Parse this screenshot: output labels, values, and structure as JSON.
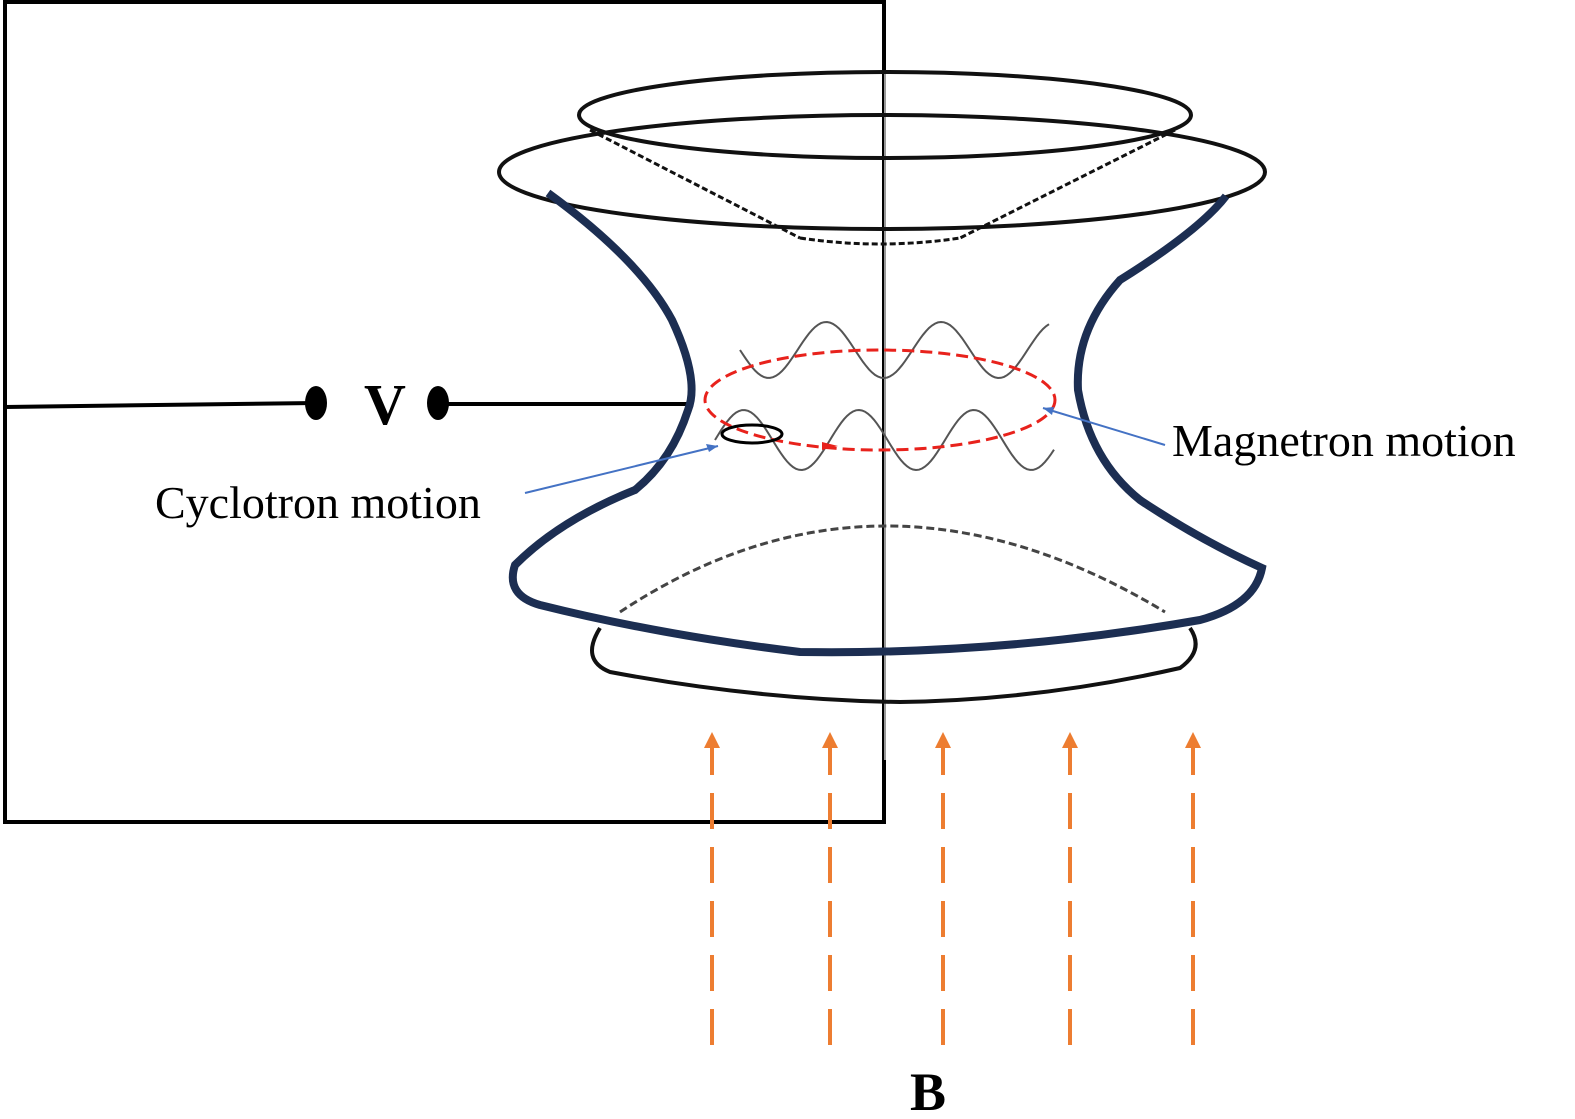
{
  "labels": {
    "voltage": "V",
    "cyclotron": "Cyclotron motion",
    "magnetron": "Magnetron motion",
    "field": "B"
  }
}
